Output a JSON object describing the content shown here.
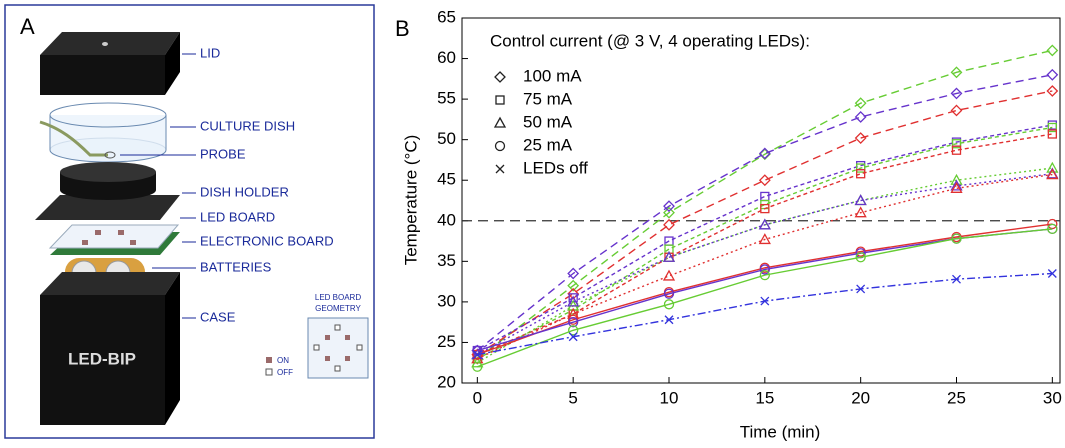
{
  "panel_a": {
    "label": "A",
    "parts": [
      "LID",
      "CULTURE DISH",
      "PROBE",
      "DISH HOLDER",
      "LED BOARD",
      "ELECTRONIC BOARD",
      "BATTERIES",
      "CASE"
    ],
    "case_text": "LED-BIP",
    "geometry_title": [
      "LED BOARD",
      "GEOMETRY"
    ],
    "on": "ON",
    "off": "OFF"
  },
  "chart_data": {
    "type": "line",
    "panel_label": "B",
    "legend_title": "Control current (@ 3 V, 4 operating LEDs):",
    "legend": [
      {
        "label": "100 mA",
        "marker": "diamond"
      },
      {
        "label": "75 mA",
        "marker": "square"
      },
      {
        "label": "50 mA",
        "marker": "triangle"
      },
      {
        "label": "25 mA",
        "marker": "circle"
      },
      {
        "label": "LEDs off",
        "marker": "x"
      }
    ],
    "x_label": "Time (min)",
    "y_label": "Temperature (°C)",
    "x": [
      0,
      5,
      10,
      15,
      20,
      25,
      30
    ],
    "xlim": [
      -0.8,
      30.4
    ],
    "xticks": [
      0,
      5,
      10,
      15,
      20,
      25,
      30
    ],
    "ylim": [
      20,
      65
    ],
    "yticks": [
      20,
      25,
      30,
      35,
      40,
      45,
      50,
      55,
      60,
      65
    ],
    "reference_line": 40,
    "series": [
      {
        "marker": "diamond",
        "color": "#66cc33",
        "dash": "8 5",
        "values": [
          23,
          32,
          41,
          48.2,
          54.5,
          58.3,
          61
        ]
      },
      {
        "marker": "diamond",
        "color": "#6633cc",
        "dash": "8 5",
        "values": [
          24,
          33.5,
          41.8,
          48.3,
          52.8,
          55.7,
          58
        ]
      },
      {
        "marker": "diamond",
        "color": "#e03030",
        "dash": "8 5",
        "values": [
          23.5,
          31,
          39.5,
          45,
          50.2,
          53.6,
          56
        ]
      },
      {
        "marker": "square",
        "color": "#6633cc",
        "dash": "4 3",
        "values": [
          24,
          30.5,
          37.5,
          43,
          46.8,
          49.7,
          51.8
        ]
      },
      {
        "marker": "square",
        "color": "#66cc33",
        "dash": "4 3",
        "values": [
          23,
          29,
          36.5,
          42,
          46.5,
          49.5,
          51.5
        ]
      },
      {
        "marker": "square",
        "color": "#e03030",
        "dash": "4 3",
        "values": [
          23.5,
          28.5,
          35.5,
          41.5,
          45.8,
          48.7,
          50.7
        ]
      },
      {
        "marker": "triangle",
        "color": "#66cc33",
        "dash": "2 3",
        "values": [
          22.5,
          29.5,
          35.5,
          39.5,
          42.5,
          45,
          46.5
        ]
      },
      {
        "marker": "triangle",
        "color": "#6633cc",
        "dash": "2 3",
        "values": [
          23.5,
          30,
          35.5,
          39.5,
          42.5,
          44.3,
          45.8
        ]
      },
      {
        "marker": "triangle",
        "color": "#e03030",
        "dash": "2 3",
        "values": [
          23,
          28.5,
          33.2,
          37.7,
          41,
          44,
          45.7
        ]
      },
      {
        "marker": "circle",
        "color": "#e03030",
        "dash": "none",
        "values": [
          23.5,
          27.8,
          31.2,
          34.2,
          36.2,
          38,
          39.6
        ]
      },
      {
        "marker": "circle",
        "color": "#6633cc",
        "dash": "none",
        "values": [
          24,
          27.5,
          31,
          34,
          36,
          37.8,
          39
        ]
      },
      {
        "marker": "circle",
        "color": "#66cc33",
        "dash": "none",
        "values": [
          22,
          26.5,
          29.7,
          33.3,
          35.5,
          37.8,
          39
        ]
      },
      {
        "marker": "x",
        "color": "#3333dd",
        "dash": "8 3 2 3",
        "values": [
          23.5,
          25.7,
          27.8,
          30.1,
          31.6,
          32.8,
          33.5
        ]
      }
    ]
  }
}
